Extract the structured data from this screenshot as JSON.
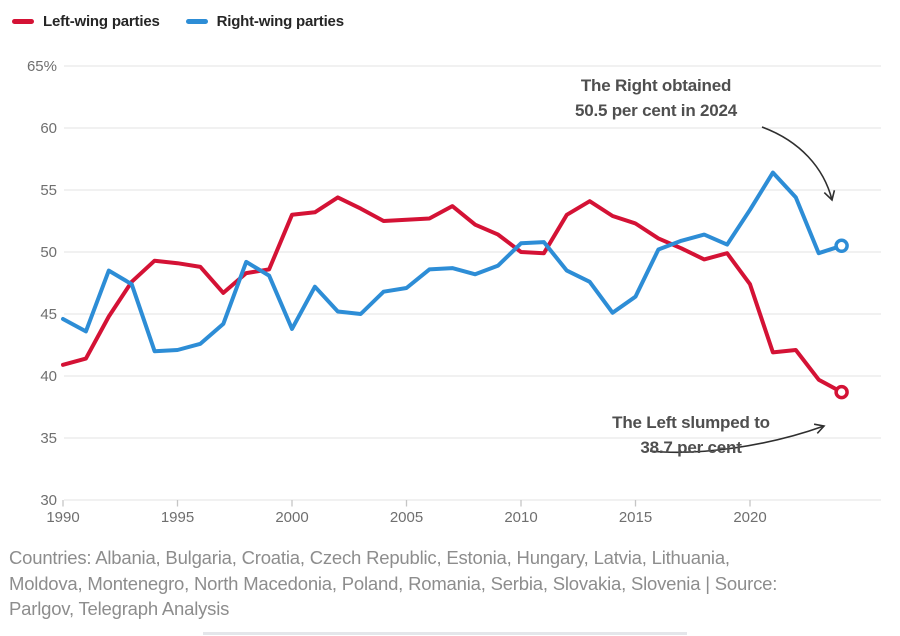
{
  "legend": {
    "items": [
      {
        "label": "Left-wing parties",
        "color": "#d41235"
      },
      {
        "label": "Right-wing parties",
        "color": "#2d8dd6"
      }
    ]
  },
  "chart_data": {
    "type": "line",
    "x": [
      1990,
      1991,
      1992,
      1993,
      1994,
      1995,
      1996,
      1997,
      1998,
      1999,
      2000,
      2001,
      2002,
      2003,
      2004,
      2005,
      2006,
      2007,
      2008,
      2009,
      2010,
      2011,
      2012,
      2013,
      2014,
      2015,
      2016,
      2017,
      2018,
      2019,
      2020,
      2021,
      2022,
      2023,
      2024
    ],
    "series": [
      {
        "name": "Left-wing parties",
        "color": "#d41235",
        "values": [
          40.9,
          41.4,
          44.8,
          47.6,
          49.3,
          49.1,
          48.8,
          46.7,
          48.3,
          48.6,
          53.0,
          53.2,
          54.4,
          53.5,
          52.5,
          52.6,
          52.7,
          53.7,
          52.2,
          51.4,
          50.0,
          49.9,
          53.0,
          54.1,
          52.9,
          52.3,
          51.1,
          50.3,
          49.4,
          49.9,
          47.4,
          41.9,
          42.1,
          39.7,
          38.7
        ]
      },
      {
        "name": "Right-wing parties",
        "color": "#2d8dd6",
        "values": [
          44.6,
          43.6,
          48.5,
          47.4,
          42.0,
          42.1,
          42.6,
          44.2,
          49.2,
          48.1,
          43.8,
          47.2,
          45.2,
          45.0,
          46.8,
          47.1,
          48.6,
          48.7,
          48.2,
          48.9,
          50.7,
          50.8,
          48.5,
          47.6,
          45.1,
          46.4,
          50.2,
          50.9,
          51.4,
          50.6,
          53.4,
          56.4,
          54.4,
          49.9,
          50.5
        ]
      }
    ],
    "ylim": [
      30,
      65
    ],
    "yticks": [
      65,
      60,
      55,
      50,
      45,
      40,
      35,
      30
    ],
    "ytick_labels": [
      "65%",
      "60",
      "55",
      "50",
      "45",
      "40",
      "35",
      "30"
    ],
    "xticks": [
      1990,
      1995,
      2000,
      2005,
      2010,
      2015,
      2020
    ],
    "grid": "horizontal",
    "legend_position": "top-left",
    "end_markers": "open-circle",
    "annotations": [
      {
        "id": "right",
        "lines": [
          "The Right obtained",
          "50.5 per cent in 2024"
        ]
      },
      {
        "id": "left",
        "lines": [
          "The Left slumped to",
          "38.7 per cent"
        ]
      }
    ]
  },
  "footer": {
    "lines": [
      "Countries: Albania, Bulgaria, Croatia, Czech Republic, Estonia, Hungary, Latvia, Lithuania,",
      "Moldova, Montenegro, North Macedonia, Poland, Romania, Serbia, Slovakia, Slovenia | Source:",
      "Parlgov, Telegraph Analysis"
    ]
  }
}
